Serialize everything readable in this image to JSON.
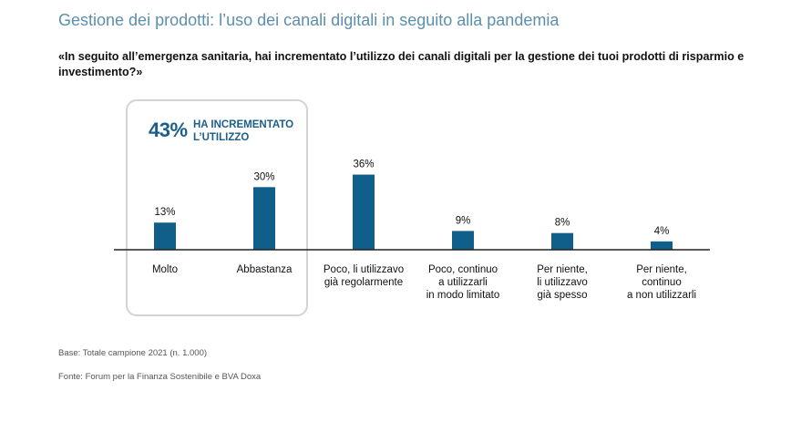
{
  "title": "Gestione dei prodotti: l’uso dei canali digitali in seguito alla pandemia",
  "question": "«In seguito all’emergenza sanitaria, hai incrementato l’utilizzo dei canali digitali per la gestione dei tuoi prodotti di risparmio e investimento?»",
  "highlight": {
    "value": "43%",
    "label_line1": "HA INCREMENTATO",
    "label_line2": "L’UTILIZZO"
  },
  "colors": {
    "bar": "#0f5f8a",
    "title": "#5b8fad",
    "highlight": "#1b5e8a"
  },
  "chart_data": {
    "type": "bar",
    "categories": [
      [
        "Molto"
      ],
      [
        "Abbastanza"
      ],
      [
        "Poco, li utilizzavo",
        "già regolarmente"
      ],
      [
        "Poco, continuo",
        "a utilizzarli",
        "in modo limitato"
      ],
      [
        "Per niente,",
        "li utilizzavo",
        "già spesso"
      ],
      [
        "Per niente,",
        "continuo",
        "a non utilizzarli"
      ]
    ],
    "values": [
      13,
      30,
      36,
      9,
      8,
      4
    ],
    "value_labels": [
      "13%",
      "30%",
      "36%",
      "9%",
      "8%",
      "4%"
    ],
    "unit": "%",
    "ylim": [
      0,
      40
    ],
    "grid": false
  },
  "footer": {
    "base": "Base: Totale campione 2021 (n. 1.000)",
    "source": "Fonte: Forum per la Finanza Sostenibile e BVA Doxa"
  }
}
